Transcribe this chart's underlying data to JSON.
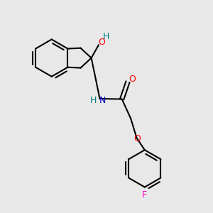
{
  "background_color": "#e8e8e8",
  "bond_color": "#000000",
  "atom_colors": {
    "O": "#ff0000",
    "N": "#0000cd",
    "F": "#ff00cc",
    "H_O": "#008080",
    "H_N": "#008080",
    "C": "#000000"
  },
  "figsize": [
    3.0,
    3.0
  ],
  "dpi": 100
}
